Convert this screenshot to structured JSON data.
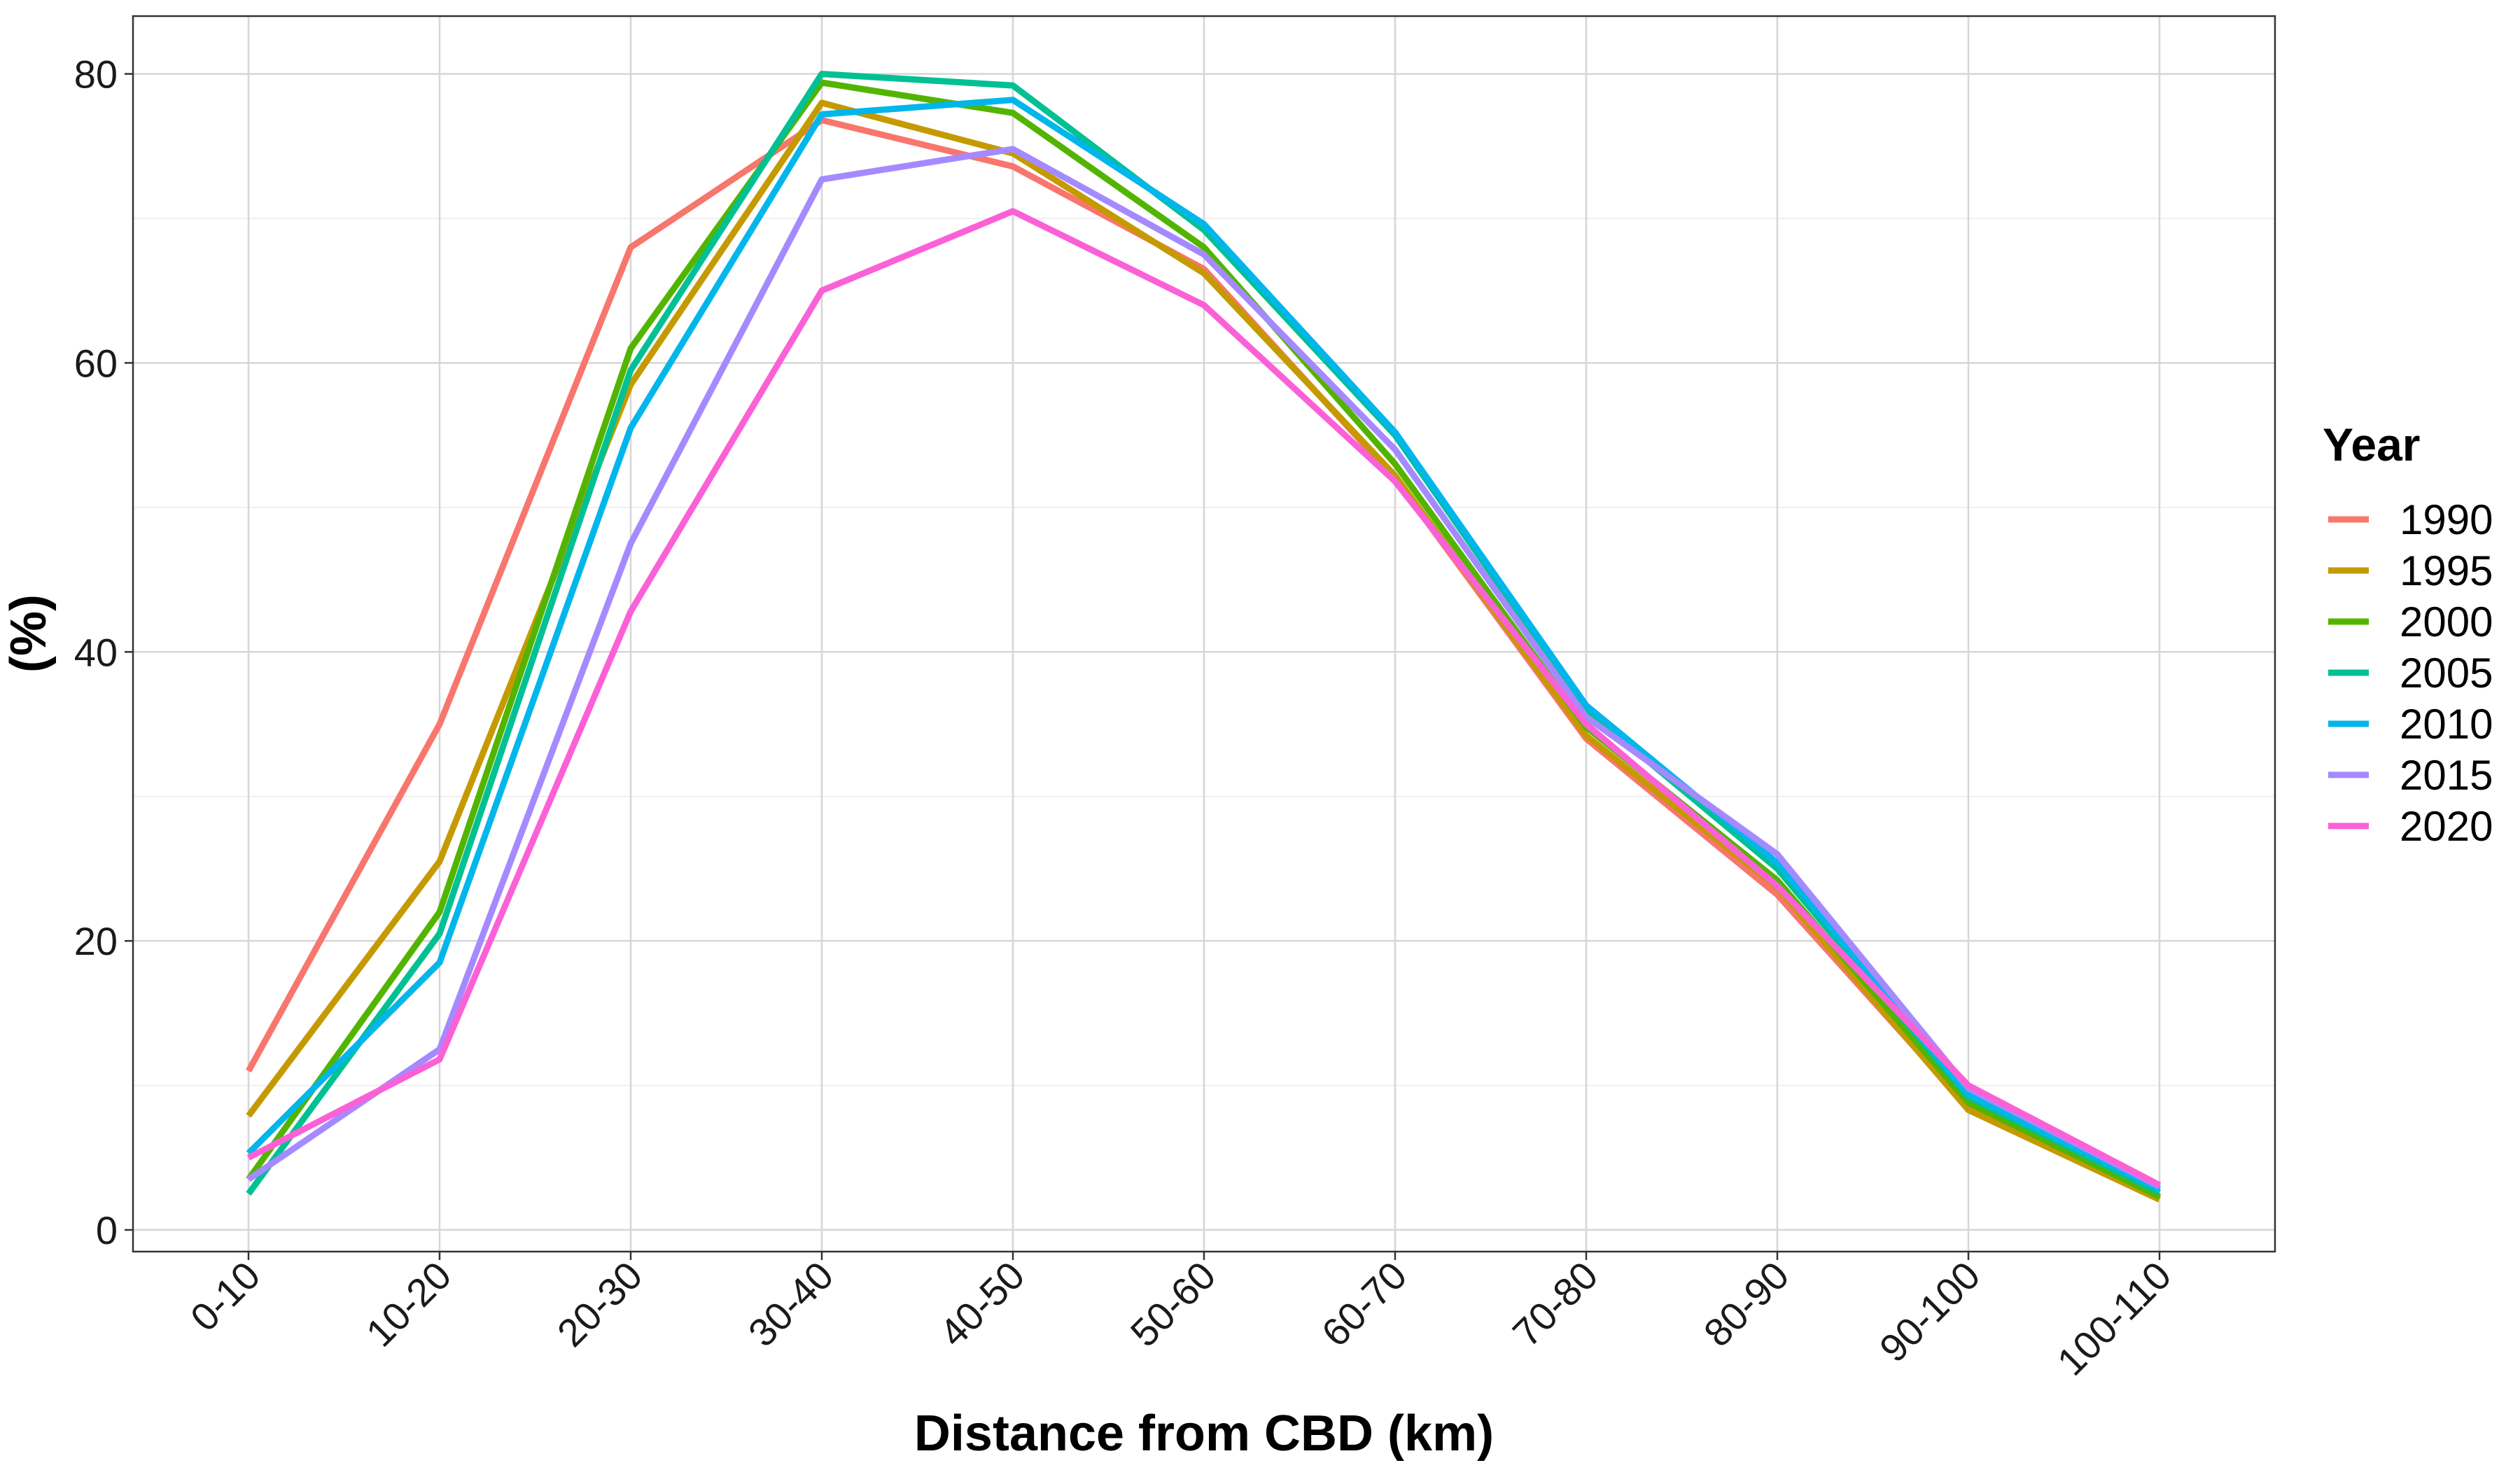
{
  "chart_data": {
    "type": "line",
    "xlabel": "Distance from CBD (km)",
    "ylabel": "(%)",
    "categories": [
      "0-10",
      "10-20",
      "20-30",
      "30-40",
      "40-50",
      "50-60",
      "60-70",
      "70-80",
      "80-90",
      "90-100",
      "100-110"
    ],
    "ylim": [
      -1.5,
      84
    ],
    "yticks": [
      0,
      20,
      40,
      60,
      80
    ],
    "grid": true,
    "legend": {
      "title": "Year",
      "position": "right"
    },
    "series": [
      {
        "name": "1990",
        "color": "#F8766D",
        "values": [
          11.0,
          35.0,
          68.0,
          76.8,
          73.6,
          66.5,
          52.0,
          34.0,
          23.2,
          8.5,
          2.2
        ]
      },
      {
        "name": "1995",
        "color": "#C49A00",
        "values": [
          7.9,
          25.5,
          58.5,
          78.0,
          74.5,
          66.2,
          52.2,
          34.2,
          23.7,
          8.3,
          2.1
        ]
      },
      {
        "name": "2000",
        "color": "#53B400",
        "values": [
          3.5,
          22.0,
          61.0,
          79.4,
          77.3,
          68.0,
          53.0,
          34.8,
          24.2,
          8.8,
          2.3
        ]
      },
      {
        "name": "2005",
        "color": "#00C094",
        "values": [
          2.5,
          20.5,
          59.5,
          80.0,
          79.2,
          69.2,
          55.0,
          36.0,
          25.0,
          9.2,
          2.6
        ]
      },
      {
        "name": "2010",
        "color": "#00B6EB",
        "values": [
          5.3,
          18.5,
          55.5,
          77.2,
          78.2,
          69.6,
          55.2,
          36.3,
          25.4,
          9.4,
          2.8
        ]
      },
      {
        "name": "2015",
        "color": "#A58AFF",
        "values": [
          3.5,
          12.5,
          47.5,
          72.7,
          74.8,
          67.5,
          54.0,
          35.5,
          26.0,
          9.8,
          3.0
        ]
      },
      {
        "name": "2020",
        "color": "#FB61D7",
        "values": [
          5.0,
          11.8,
          42.8,
          65.0,
          70.5,
          64.0,
          51.8,
          35.0,
          23.8,
          10.0,
          3.1
        ]
      }
    ]
  }
}
